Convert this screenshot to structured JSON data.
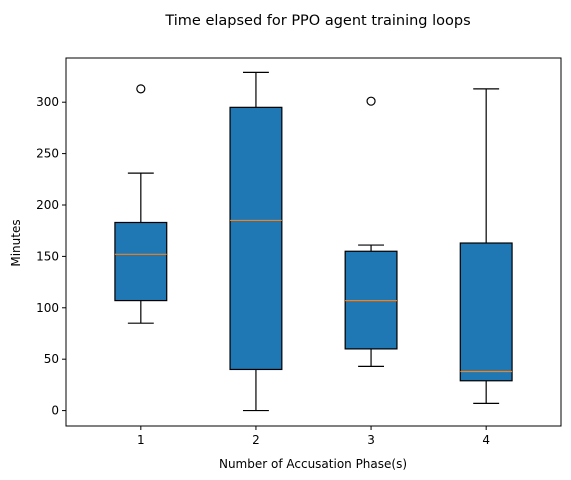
{
  "chart_data": {
    "type": "boxplot",
    "title": "Time elapsed for PPO agent training loops",
    "xlabel": "Number of Accusation Phase(s)",
    "ylabel": "Minutes",
    "ylim": [
      -15,
      343
    ],
    "yticks": [
      0,
      50,
      100,
      150,
      200,
      250,
      300
    ],
    "grid": false,
    "categories": [
      "1",
      "2",
      "3",
      "4"
    ],
    "boxes": [
      {
        "category": "1",
        "whisker_low": 85,
        "q1": 107,
        "median": 152,
        "q3": 183,
        "whisker_high": 231,
        "outliers": [
          313
        ]
      },
      {
        "category": "2",
        "whisker_low": 0,
        "q1": 40,
        "median": 185,
        "q3": 295,
        "whisker_high": 329,
        "outliers": []
      },
      {
        "category": "3",
        "whisker_low": 43,
        "q1": 60,
        "median": 107,
        "q3": 155,
        "whisker_high": 161,
        "outliers": [
          301
        ]
      },
      {
        "category": "4",
        "whisker_low": 7,
        "q1": 29,
        "median": 38,
        "q3": 163,
        "whisker_high": 313,
        "outliers": []
      }
    ],
    "colors": {
      "box_fill": "#1f77b4",
      "median": "#ff7f0e",
      "line": "#000000"
    }
  }
}
